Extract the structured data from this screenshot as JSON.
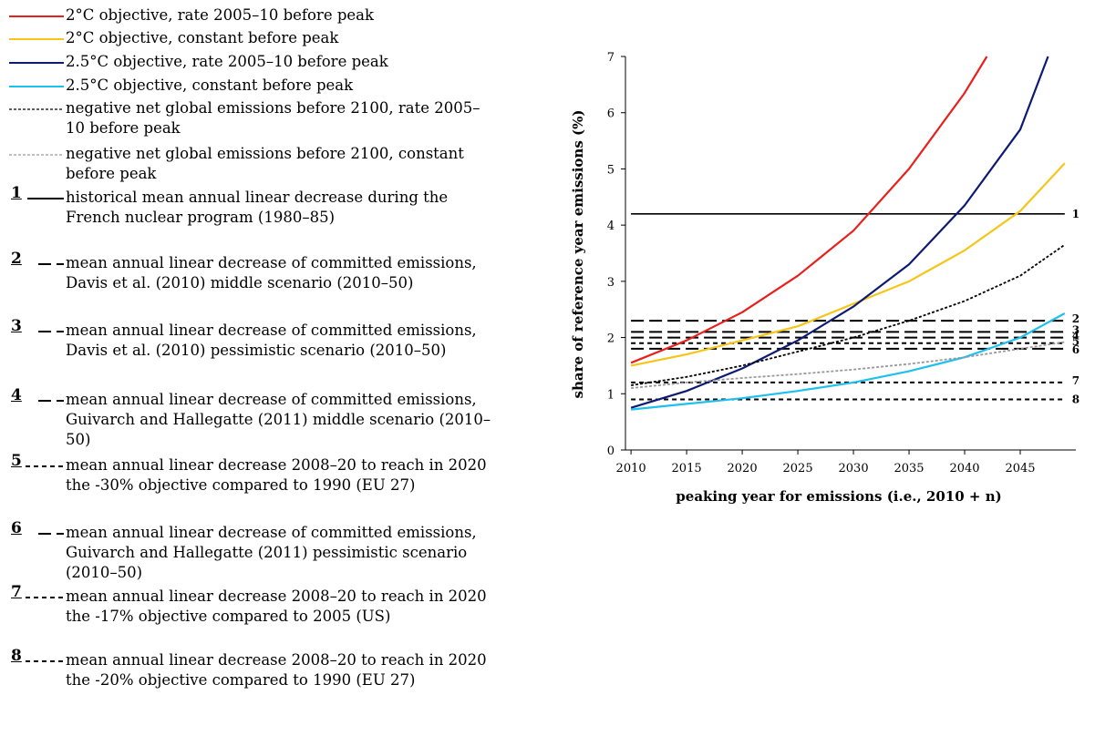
{
  "legend": [
    {
      "key": "s1",
      "text": "2°C objective, rate 2005–10 before peak",
      "color": "#e8201c",
      "style": "solid"
    },
    {
      "key": "s2",
      "text": "2°C objective, constant before peak",
      "color": "#f5c518",
      "style": "solid"
    },
    {
      "key": "s3",
      "text": "2.5°C objective, rate 2005–10 before peak",
      "color": "#0d1a73",
      "style": "solid"
    },
    {
      "key": "s4",
      "text": "2.5°C objective, constant before peak",
      "color": "#1ec0ee",
      "style": "solid"
    },
    {
      "key": "s5",
      "text": "negative net global emissions before 2100, rate 2005–10 before peak",
      "color": "#000000",
      "style": "dotted"
    },
    {
      "key": "s6",
      "text": "negative net global emissions before 2100, constant before peak",
      "color": "#999999",
      "style": "dotted"
    },
    {
      "key": "r1",
      "num": "1",
      "text": "historical mean annual linear decrease during the French nuclear program (1980–85)",
      "color": "#000000",
      "style": "solid"
    },
    {
      "key": "r2",
      "num": "2",
      "text": "mean annual linear decrease of committed emissions, Davis et al. (2010) middle scenario (2010–50)",
      "color": "#000000",
      "style": "longdash"
    },
    {
      "key": "r3",
      "num": "3",
      "text": "mean annual linear decrease of committed emissions, Davis et al. (2010) pessimistic scenario (2010–50)",
      "color": "#000000",
      "style": "longdash"
    },
    {
      "key": "r4",
      "num": "4",
      "text": "mean annual linear decrease of committed emissions, Guivarch and Hallegatte (2011) middle scenario (2010–50)",
      "color": "#000000",
      "style": "longdash"
    },
    {
      "key": "r5",
      "num": "5",
      "text": "mean annual linear decrease 2008–20 to reach in 2020 the -30% objective compared to 1990 (EU 27)",
      "color": "#000000",
      "style": "shortdash"
    },
    {
      "key": "r6",
      "num": "6",
      "text": "mean annual linear decrease of committed emissions, Guivarch and Hallegatte (2011) pessimistic scenario (2010–50)",
      "color": "#000000",
      "style": "longdash"
    },
    {
      "key": "r7",
      "num": "7",
      "text": "mean annual linear decrease 2008–20 to reach in 2020 the -17% objective compared to 2005 (US)",
      "color": "#000000",
      "style": "shortdash"
    },
    {
      "key": "r8",
      "num": "8",
      "text": "mean annual linear decrease 2008–20 to reach in 2020 the -20% objective compared to 1990 (EU 27)",
      "color": "#000000",
      "style": "shortdash"
    }
  ],
  "chart_data": {
    "type": "line",
    "xlabel": "peaking year for emissions (i.e., 2010 + n)",
    "ylabel": "share of reference year emissions (%)",
    "xlim": [
      2009.5,
      2050
    ],
    "ylim": [
      0,
      7
    ],
    "xticks": [
      2010,
      2015,
      2020,
      2025,
      2030,
      2035,
      2040,
      2045
    ],
    "yticks": [
      0,
      1,
      2,
      3,
      4,
      5,
      6,
      7
    ],
    "grid": false,
    "series": [
      {
        "name": "2°C objective, rate 2005–10 before peak",
        "color": "#e8201c",
        "style": "solid",
        "x": [
          2010,
          2015,
          2020,
          2025,
          2030,
          2035,
          2040,
          2042
        ],
        "y": [
          1.55,
          1.95,
          2.45,
          3.1,
          3.9,
          5.0,
          6.35,
          7.0
        ]
      },
      {
        "name": "2°C objective, constant before peak",
        "color": "#f5c518",
        "style": "solid",
        "x": [
          2010,
          2015,
          2020,
          2025,
          2030,
          2035,
          2040,
          2045,
          2049
        ],
        "y": [
          1.5,
          1.7,
          1.95,
          2.2,
          2.6,
          3.0,
          3.55,
          4.25,
          5.1
        ]
      },
      {
        "name": "2.5°C objective, rate 2005–10 before peak",
        "color": "#0d1a73",
        "style": "solid",
        "x": [
          2010,
          2015,
          2020,
          2025,
          2030,
          2035,
          2040,
          2045,
          2047.5
        ],
        "y": [
          0.75,
          1.05,
          1.45,
          1.95,
          2.55,
          3.3,
          4.35,
          5.7,
          7.0
        ]
      },
      {
        "name": "2.5°C objective, constant before peak",
        "color": "#1ec0ee",
        "style": "solid",
        "x": [
          2010,
          2015,
          2020,
          2025,
          2030,
          2035,
          2040,
          2045,
          2049
        ],
        "y": [
          0.72,
          0.82,
          0.92,
          1.05,
          1.2,
          1.4,
          1.65,
          2.0,
          2.43
        ]
      },
      {
        "name": "negative net global emissions before 2100, rate 2005–10 before peak",
        "color": "#000000",
        "style": "dotted",
        "x": [
          2010,
          2015,
          2020,
          2025,
          2030,
          2035,
          2040,
          2045,
          2049
        ],
        "y": [
          1.15,
          1.3,
          1.5,
          1.75,
          2.0,
          2.3,
          2.65,
          3.1,
          3.65
        ]
      },
      {
        "name": "negative net global emissions before 2100, constant before peak",
        "color": "#999999",
        "style": "dotted",
        "x": [
          2010,
          2015,
          2020,
          2025,
          2030,
          2035,
          2040,
          2045,
          2049
        ],
        "y": [
          1.1,
          1.2,
          1.28,
          1.35,
          1.43,
          1.53,
          1.65,
          1.8,
          1.92
        ]
      },
      {
        "name": "1",
        "color": "#000000",
        "style": "solid",
        "x": [
          2010,
          2049
        ],
        "y": [
          4.2,
          4.2
        ]
      },
      {
        "name": "2",
        "color": "#000000",
        "style": "longdash",
        "x": [
          2010,
          2049
        ],
        "y": [
          2.3,
          2.3
        ]
      },
      {
        "name": "3",
        "color": "#000000",
        "style": "longdash",
        "x": [
          2010,
          2049
        ],
        "y": [
          2.1,
          2.1
        ]
      },
      {
        "name": "4",
        "color": "#000000",
        "style": "longdash",
        "x": [
          2010,
          2049
        ],
        "y": [
          2.0,
          2.0
        ]
      },
      {
        "name": "5",
        "color": "#000000",
        "style": "shortdash",
        "x": [
          2010,
          2049
        ],
        "y": [
          1.9,
          1.9
        ]
      },
      {
        "name": "6",
        "color": "#000000",
        "style": "longdash",
        "x": [
          2010,
          2049
        ],
        "y": [
          1.8,
          1.8
        ]
      },
      {
        "name": "7",
        "color": "#000000",
        "style": "shortdash",
        "x": [
          2010,
          2049
        ],
        "y": [
          1.2,
          1.2
        ]
      },
      {
        "name": "8",
        "color": "#000000",
        "style": "shortdash",
        "x": [
          2010,
          2049
        ],
        "y": [
          0.9,
          0.9
        ]
      }
    ],
    "line_labels": [
      {
        "text": "1",
        "y": 4.2
      },
      {
        "text": "2",
        "y": 2.33
      },
      {
        "text": "3",
        "y": 2.13
      },
      {
        "text": "4",
        "y": 2.03
      },
      {
        "text": "5",
        "y": 1.93
      },
      {
        "text": "6",
        "y": 1.78
      },
      {
        "text": "7",
        "y": 1.23
      },
      {
        "text": "8",
        "y": 0.9
      }
    ]
  }
}
